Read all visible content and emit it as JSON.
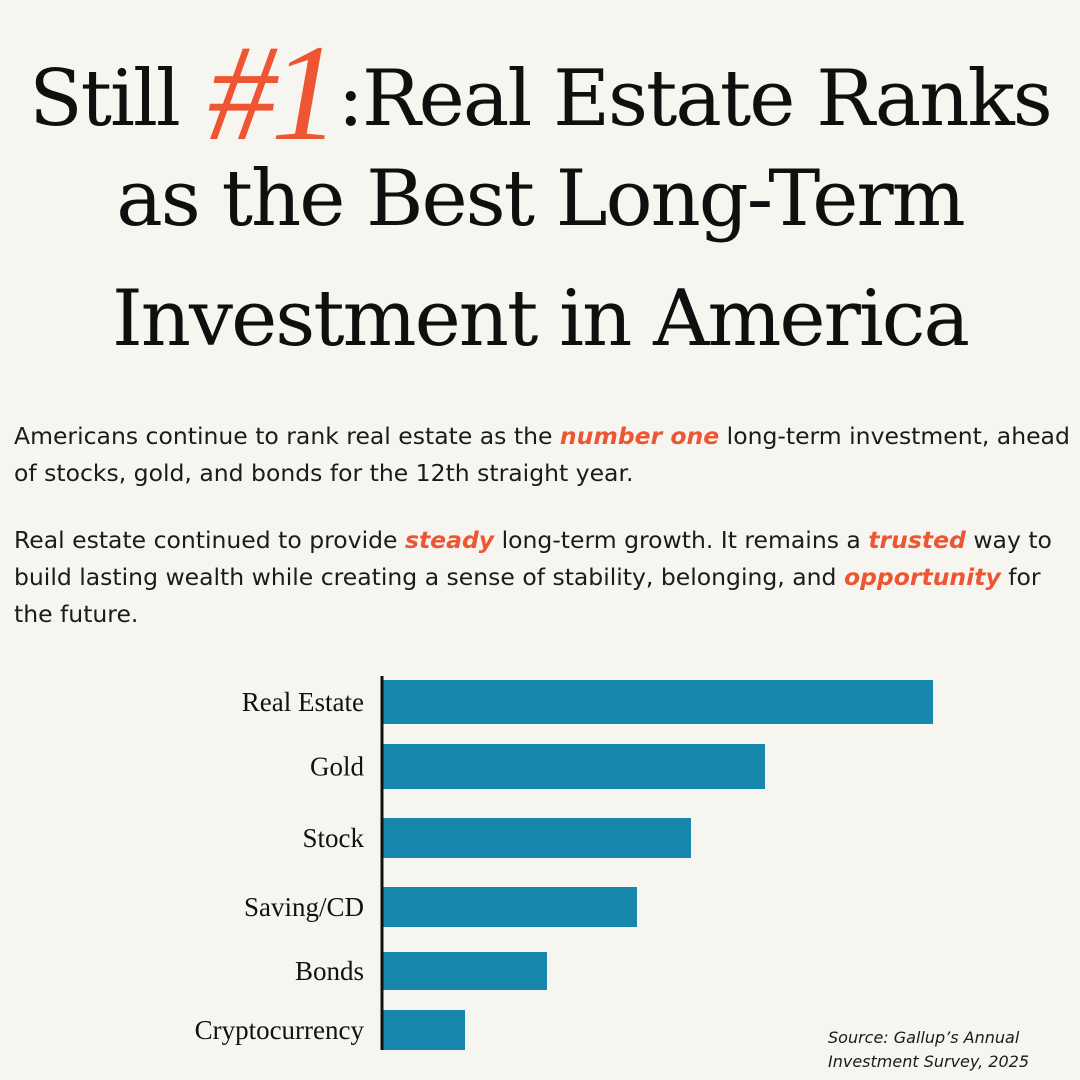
{
  "title": {
    "prefix": "Still ",
    "highlight": "#1",
    "line1_rest": ":Real Estate Ranks",
    "line2": "as the Best Long-Term",
    "line3": "Investment in America"
  },
  "paragraph1": {
    "part1": "Americans continue to rank real estate as the ",
    "emphasis": "number one",
    "part2": " long-term investment, ahead of stocks, gold, and bonds for the 12th straight year."
  },
  "paragraph2": {
    "part1": "Real estate continued to provide ",
    "emphasis1": "steady",
    "part2": " long-term growth. It remains a ",
    "emphasis2": "trusted",
    "part3": " way to build lasting wealth while creating a sense of stability, belonging, and ",
    "emphasis3": "opportunity",
    "part4": " for the future."
  },
  "colors": {
    "accent": "#ee5533",
    "bar": "#1787ad",
    "axis": "#111111",
    "background": "#f6f5f0"
  },
  "chart_data": {
    "type": "bar",
    "orientation": "horizontal",
    "categories": [
      "Real Estate",
      "Gold",
      "Stock",
      "Saving/CD",
      "Bonds",
      "Cryptocurrency"
    ],
    "values": [
      37,
      25.7,
      20.7,
      17.1,
      11,
      5.5
    ],
    "xlim": [
      0,
      37
    ],
    "grid": false,
    "legend": "none"
  },
  "source": {
    "line1": "Source: Gallup’s Annual",
    "line2": "Investment Survey, 2025"
  }
}
